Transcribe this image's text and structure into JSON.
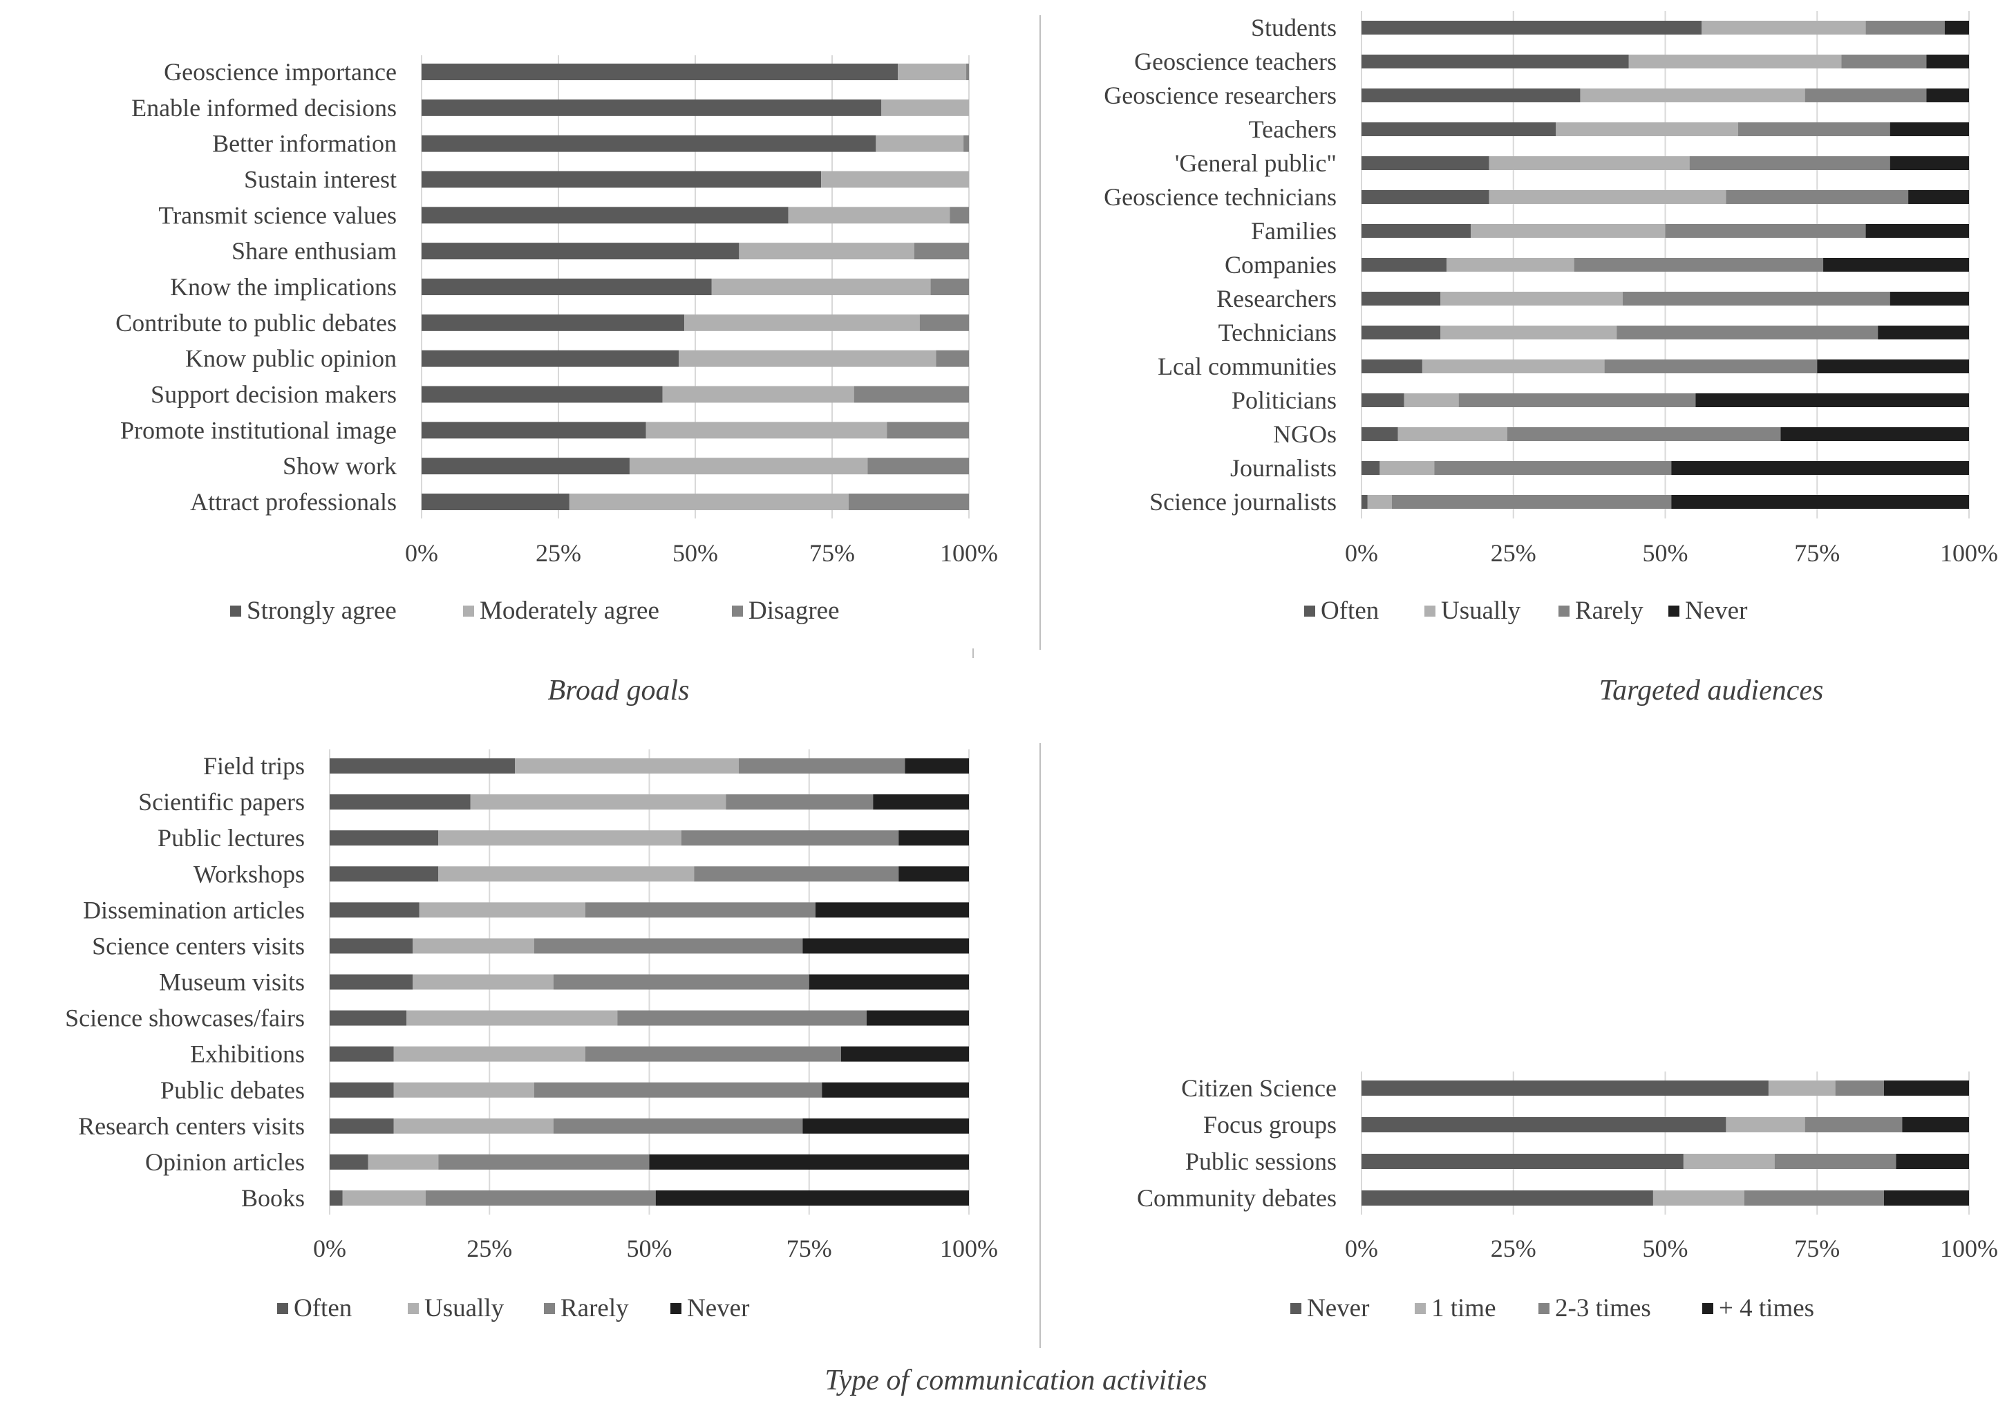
{
  "figure_caption": "Type of communication activities",
  "colors": {
    "dark": "#5a5a5a",
    "light": "#b0b0b0",
    "mid": "#838383",
    "black": "#1e1e1e",
    "grid": "#d9d9d9",
    "text": "#404040",
    "separator": "#bfbfbf"
  },
  "chart_data": [
    {
      "type": "bar",
      "orientation": "horizontal",
      "stacked": "percent",
      "title": "Broad goals",
      "categories": [
        "Geoscience importance",
        "Enable informed decisions",
        "Better information",
        "Sustain interest",
        "Transmit science values",
        "Share enthusiam",
        "Know the implications",
        "Contribute to public debates",
        "Know public opinion",
        "Support decision makers",
        "Promote institutional image",
        "Show work",
        "Attract professionals"
      ],
      "series": [
        {
          "name": "Strongly agree",
          "color": "#5a5a5a",
          "values": [
            87,
            84,
            83,
            73,
            67,
            58,
            53,
            48,
            47,
            44,
            41,
            38,
            27
          ]
        },
        {
          "name": "Moderately agree",
          "color": "#b0b0b0",
          "values": [
            12.5,
            16,
            16,
            27,
            29.5,
            32,
            40,
            43,
            47,
            35,
            44,
            43.5,
            51
          ]
        },
        {
          "name": "Disagree",
          "color": "#838383",
          "values": [
            0.5,
            0,
            1,
            0,
            3.5,
            10,
            7,
            9,
            6,
            21,
            15,
            18.5,
            22
          ]
        }
      ],
      "xlim": [
        0,
        100
      ],
      "xticks": [
        "0%",
        "25%",
        "50%",
        "75%",
        "100%"
      ],
      "legend": "bottom",
      "grid": true
    },
    {
      "type": "bar",
      "orientation": "horizontal",
      "stacked": "percent",
      "title": "Targeted audiences",
      "categories": [
        "Students",
        "Geoscience teachers",
        "Geoscience researchers",
        "Teachers",
        "'General public\"",
        "Geoscience technicians",
        "Families",
        "Companies",
        "Researchers",
        "Technicians",
        "Lcal communities",
        "Politicians",
        "NGOs",
        "Journalists",
        "Science journalists"
      ],
      "series": [
        {
          "name": "Often",
          "color": "#5a5a5a",
          "values": [
            56,
            44,
            36,
            32,
            21,
            21,
            18,
            14,
            13,
            13,
            10,
            7,
            6,
            3,
            1
          ]
        },
        {
          "name": "Usually",
          "color": "#b0b0b0",
          "values": [
            27,
            35,
            37,
            30,
            33,
            39,
            32,
            21,
            30,
            29,
            30,
            9,
            18,
            9,
            4
          ]
        },
        {
          "name": "Rarely",
          "color": "#838383",
          "values": [
            13,
            14,
            20,
            25,
            33,
            30,
            33,
            41,
            44,
            43,
            35,
            39,
            45,
            39,
            46
          ]
        },
        {
          "name": "Never",
          "color": "#1e1e1e",
          "values": [
            4,
            7,
            7,
            13,
            13,
            10,
            17,
            24,
            13,
            15,
            25,
            45,
            31,
            49,
            49
          ]
        }
      ],
      "xlim": [
        0,
        100
      ],
      "xticks": [
        "0%",
        "25%",
        "50%",
        "75%",
        "100%"
      ],
      "legend": "bottom",
      "grid": true
    },
    {
      "type": "bar",
      "orientation": "horizontal",
      "stacked": "percent",
      "title": "",
      "categories": [
        "Field trips",
        "Scientific papers",
        "Public lectures",
        "Workshops",
        "Dissemination articles",
        "Science centers visits",
        "Museum visits",
        "Science showcases/fairs",
        "Exhibitions",
        "Public debates",
        "Research centers visits",
        "Opinion articles",
        "Books"
      ],
      "series": [
        {
          "name": "Often",
          "color": "#5a5a5a",
          "values": [
            29,
            22,
            17,
            17,
            14,
            13,
            13,
            12,
            10,
            10,
            10,
            6,
            2
          ]
        },
        {
          "name": "Usually",
          "color": "#b0b0b0",
          "values": [
            35,
            40,
            38,
            40,
            26,
            19,
            22,
            33,
            30,
            22,
            25,
            11,
            13
          ]
        },
        {
          "name": "Rarely",
          "color": "#838383",
          "values": [
            26,
            23,
            34,
            32,
            36,
            42,
            40,
            39,
            40,
            45,
            39,
            33,
            36
          ]
        },
        {
          "name": "Never",
          "color": "#1e1e1e",
          "values": [
            10,
            15,
            11,
            11,
            24,
            26,
            25,
            16,
            20,
            23,
            26,
            50,
            49
          ]
        }
      ],
      "xlim": [
        0,
        100
      ],
      "xticks": [
        "0%",
        "25%",
        "50%",
        "75%",
        "100%"
      ],
      "legend": "bottom",
      "grid": true
    },
    {
      "type": "bar",
      "orientation": "horizontal",
      "stacked": "percent",
      "title": "",
      "categories": [
        "Citizen Science",
        "Focus groups",
        "Public sessions",
        "Community debates"
      ],
      "series": [
        {
          "name": "Never",
          "color": "#5a5a5a",
          "values": [
            67,
            60,
            53,
            48
          ]
        },
        {
          "name": "1 time",
          "color": "#b0b0b0",
          "values": [
            11,
            13,
            15,
            15
          ]
        },
        {
          "name": "2-3 times",
          "color": "#838383",
          "values": [
            8,
            16,
            20,
            23
          ]
        },
        {
          "name": "+ 4 times",
          "color": "#1e1e1e",
          "values": [
            14,
            11,
            12,
            14
          ]
        }
      ],
      "xlim": [
        0,
        100
      ],
      "xticks": [
        "0%",
        "25%",
        "50%",
        "75%",
        "100%"
      ],
      "legend": "bottom",
      "grid": true
    }
  ]
}
